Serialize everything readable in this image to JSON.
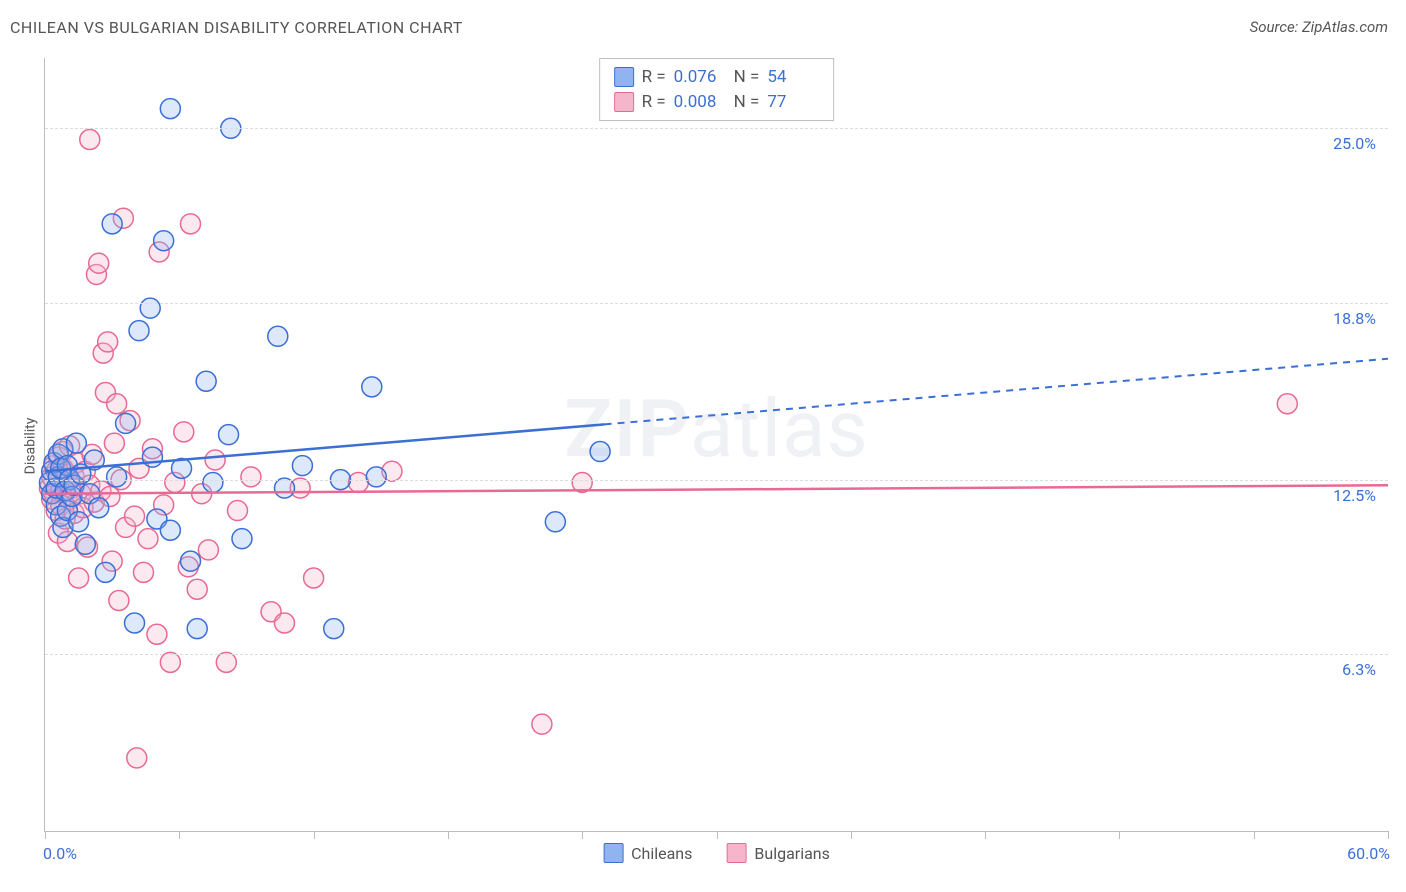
{
  "title": "CHILEAN VS BULGARIAN DISABILITY CORRELATION CHART",
  "source_prefix": "Source: ",
  "source_name": "ZipAtlas.com",
  "ylabel": "Disability",
  "watermark_bold": "ZIP",
  "watermark_rest": "atlas",
  "chart": {
    "type": "scatter",
    "background_color": "#ffffff",
    "grid_color": "#dcdcdc",
    "axis_color": "#bdbdbd",
    "x": {
      "min": 0.0,
      "max": 60.0,
      "ticks": [
        0,
        6,
        12,
        18,
        24,
        30,
        36,
        42,
        48,
        54,
        60
      ],
      "start_label": "0.0%",
      "end_label": "60.0%"
    },
    "y": {
      "min": 0.0,
      "max": 27.5,
      "grid": [
        6.3,
        12.5,
        18.8,
        25.0
      ],
      "labels": [
        "6.3%",
        "12.5%",
        "18.8%",
        "25.0%"
      ]
    },
    "marker_radius": 10,
    "marker_stroke_width": 1.5,
    "marker_fill_opacity": 0.3,
    "trend_line_width": 2.5,
    "series": [
      {
        "key": "chileans",
        "label": "Chileans",
        "color_stroke": "#3b6fd6",
        "color_fill": "#8fb4f0",
        "stats": {
          "r_label": "R =",
          "r_value": "0.076",
          "n_label": "N =",
          "n_value": "54"
        },
        "trend": {
          "y_at_x0": 12.8,
          "y_at_x60": 16.8,
          "solid_until_x": 25.0
        },
        "points": [
          [
            0.2,
            12.4
          ],
          [
            0.3,
            12.0
          ],
          [
            0.3,
            12.8
          ],
          [
            0.4,
            13.1
          ],
          [
            0.5,
            11.6
          ],
          [
            0.5,
            12.2
          ],
          [
            0.6,
            13.4
          ],
          [
            0.6,
            12.6
          ],
          [
            0.7,
            11.2
          ],
          [
            0.7,
            12.9
          ],
          [
            0.8,
            13.6
          ],
          [
            0.8,
            10.8
          ],
          [
            0.9,
            12.1
          ],
          [
            1.0,
            11.4
          ],
          [
            1.0,
            13.0
          ],
          [
            1.1,
            12.5
          ],
          [
            1.2,
            11.9
          ],
          [
            1.3,
            12.3
          ],
          [
            1.4,
            13.8
          ],
          [
            1.5,
            11.0
          ],
          [
            1.6,
            12.7
          ],
          [
            1.8,
            10.2
          ],
          [
            2.0,
            12.0
          ],
          [
            2.2,
            13.2
          ],
          [
            2.4,
            11.5
          ],
          [
            2.7,
            9.2
          ],
          [
            3.0,
            21.6
          ],
          [
            3.2,
            12.6
          ],
          [
            3.6,
            14.5
          ],
          [
            4.0,
            7.4
          ],
          [
            4.2,
            17.8
          ],
          [
            4.7,
            18.6
          ],
          [
            4.8,
            13.3
          ],
          [
            5.0,
            11.1
          ],
          [
            5.3,
            21.0
          ],
          [
            5.6,
            10.7
          ],
          [
            5.6,
            25.7
          ],
          [
            6.1,
            12.9
          ],
          [
            6.5,
            9.6
          ],
          [
            6.8,
            7.2
          ],
          [
            7.2,
            16.0
          ],
          [
            7.5,
            12.4
          ],
          [
            8.2,
            14.1
          ],
          [
            8.3,
            25.0
          ],
          [
            8.8,
            10.4
          ],
          [
            10.4,
            17.6
          ],
          [
            10.7,
            12.2
          ],
          [
            11.5,
            13.0
          ],
          [
            12.9,
            7.2
          ],
          [
            13.2,
            12.5
          ],
          [
            14.6,
            15.8
          ],
          [
            14.8,
            12.6
          ],
          [
            22.8,
            11.0
          ],
          [
            24.8,
            13.5
          ]
        ]
      },
      {
        "key": "bulgarians",
        "label": "Bulgarians",
        "color_stroke": "#e86a94",
        "color_fill": "#f5b6cc",
        "stats": {
          "r_label": "R =",
          "r_value": "0.008",
          "n_label": "N =",
          "n_value": "77"
        },
        "trend": {
          "y_at_x0": 12.0,
          "y_at_x60": 12.3,
          "solid_until_x": 60.0
        },
        "points": [
          [
            0.2,
            12.2
          ],
          [
            0.3,
            12.6
          ],
          [
            0.3,
            11.8
          ],
          [
            0.4,
            13.0
          ],
          [
            0.4,
            12.0
          ],
          [
            0.5,
            11.4
          ],
          [
            0.5,
            12.8
          ],
          [
            0.6,
            13.3
          ],
          [
            0.6,
            10.6
          ],
          [
            0.7,
            12.1
          ],
          [
            0.7,
            11.6
          ],
          [
            0.8,
            12.9
          ],
          [
            0.8,
            13.5
          ],
          [
            0.9,
            11.1
          ],
          [
            0.9,
            12.4
          ],
          [
            1.0,
            10.3
          ],
          [
            1.0,
            12.7
          ],
          [
            1.1,
            13.7
          ],
          [
            1.1,
            11.8
          ],
          [
            1.2,
            12.2
          ],
          [
            1.3,
            11.3
          ],
          [
            1.3,
            12.6
          ],
          [
            1.4,
            13.1
          ],
          [
            1.5,
            9.0
          ],
          [
            1.6,
            12.0
          ],
          [
            1.7,
            11.5
          ],
          [
            1.8,
            12.8
          ],
          [
            1.9,
            10.1
          ],
          [
            2.0,
            12.3
          ],
          [
            2.0,
            24.6
          ],
          [
            2.1,
            13.4
          ],
          [
            2.2,
            11.7
          ],
          [
            2.3,
            19.8
          ],
          [
            2.4,
            20.2
          ],
          [
            2.5,
            12.1
          ],
          [
            2.6,
            17.0
          ],
          [
            2.7,
            15.6
          ],
          [
            2.8,
            17.4
          ],
          [
            2.9,
            11.9
          ],
          [
            3.0,
            9.6
          ],
          [
            3.1,
            13.8
          ],
          [
            3.2,
            15.2
          ],
          [
            3.3,
            8.2
          ],
          [
            3.4,
            12.5
          ],
          [
            3.5,
            21.8
          ],
          [
            3.6,
            10.8
          ],
          [
            3.8,
            14.6
          ],
          [
            4.0,
            11.2
          ],
          [
            4.1,
            2.6
          ],
          [
            4.2,
            12.9
          ],
          [
            4.4,
            9.2
          ],
          [
            4.6,
            10.4
          ],
          [
            4.8,
            13.6
          ],
          [
            5.0,
            7.0
          ],
          [
            5.1,
            20.6
          ],
          [
            5.3,
            11.6
          ],
          [
            5.6,
            6.0
          ],
          [
            5.8,
            12.4
          ],
          [
            6.2,
            14.2
          ],
          [
            6.4,
            9.4
          ],
          [
            6.5,
            21.6
          ],
          [
            6.8,
            8.6
          ],
          [
            7.0,
            12.0
          ],
          [
            7.3,
            10.0
          ],
          [
            7.6,
            13.2
          ],
          [
            8.1,
            6.0
          ],
          [
            8.6,
            11.4
          ],
          [
            9.2,
            12.6
          ],
          [
            10.1,
            7.8
          ],
          [
            11.4,
            12.2
          ],
          [
            12.0,
            9.0
          ],
          [
            10.7,
            7.4
          ],
          [
            15.5,
            12.8
          ],
          [
            14.0,
            12.4
          ],
          [
            22.2,
            3.8
          ],
          [
            24.0,
            12.4
          ],
          [
            55.5,
            15.2
          ]
        ]
      }
    ]
  }
}
